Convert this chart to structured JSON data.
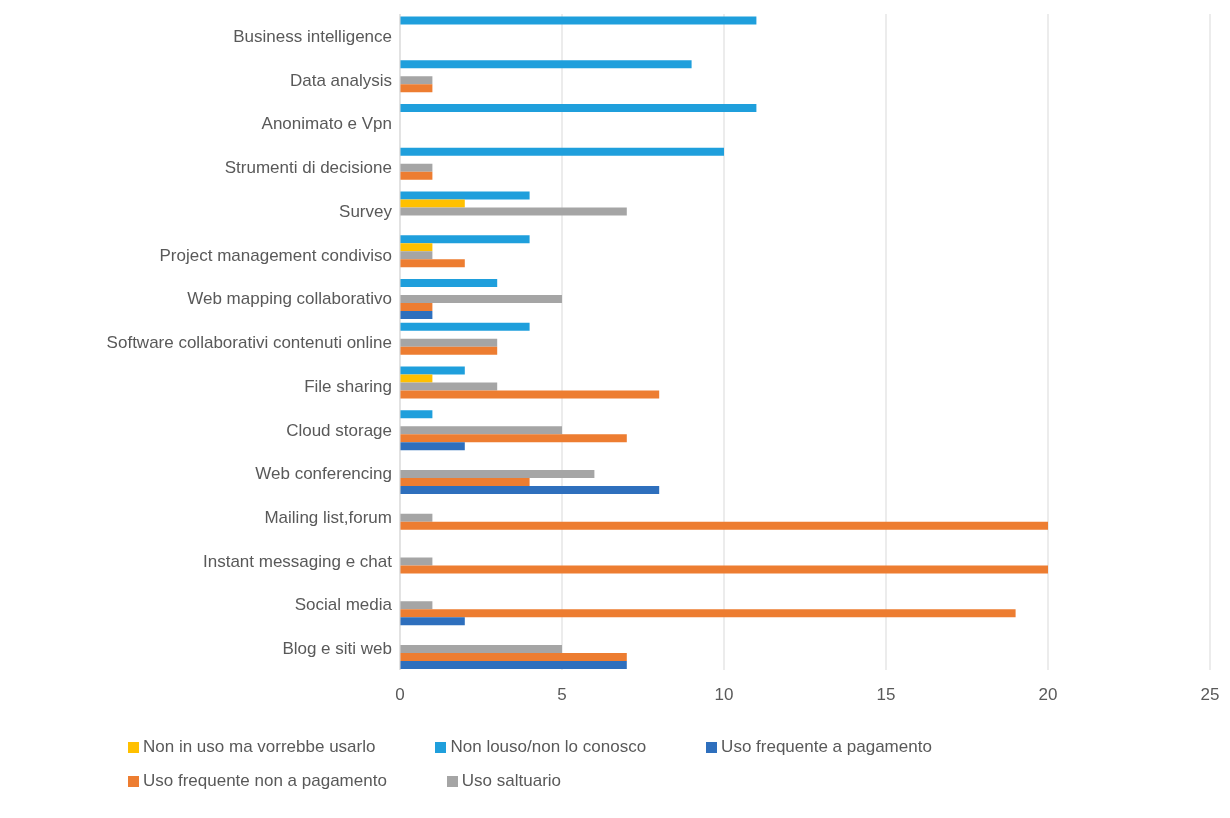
{
  "chart_data": {
    "type": "bar",
    "orientation": "horizontal",
    "categories": [
      "Business intelligence",
      "Data analysis ",
      "Anonimato e Vpn",
      "Strumenti di decisione",
      "Survey",
      "Project management condiviso",
      "Web mapping collaborativo",
      "Software collaborativi contenuti online",
      "File sharing",
      "Cloud storage",
      "Web conferencing",
      "Mailing list,forum",
      "Instant messaging e chat",
      "Social media",
      "Blog e siti web"
    ],
    "series": [
      {
        "name": "Non louso/non lo conosco",
        "color": "#1f9fdc",
        "values": [
          11,
          9,
          11,
          10,
          4,
          4,
          3,
          4,
          2,
          1,
          0,
          0,
          0,
          0,
          0
        ]
      },
      {
        "name": "Non in uso ma vorrebbe usarlo",
        "color": "#ffc000",
        "values": [
          0,
          0,
          0,
          0,
          2,
          1,
          0,
          0,
          1,
          0,
          0,
          0,
          0,
          0,
          0
        ]
      },
      {
        "name": "Uso saltuario",
        "color": "#a5a5a5",
        "values": [
          0,
          1,
          0,
          1,
          7,
          1,
          5,
          3,
          3,
          5,
          6,
          1,
          1,
          1,
          5
        ]
      },
      {
        "name": "Uso frequente non a pagamento",
        "color": "#ed7d31",
        "values": [
          0,
          1,
          0,
          1,
          0,
          2,
          1,
          3,
          8,
          7,
          4,
          20,
          20,
          19,
          7
        ]
      },
      {
        "name": "Uso frequente a pagamento",
        "color": "#2e6fbd",
        "values": [
          0,
          0,
          0,
          0,
          0,
          0,
          1,
          0,
          0,
          2,
          8,
          0,
          0,
          2,
          7
        ]
      }
    ],
    "xlim": [
      0,
      25
    ],
    "xticks": [
      0,
      5,
      10,
      15,
      20,
      25
    ],
    "grid": "x",
    "legend": "bottom"
  }
}
